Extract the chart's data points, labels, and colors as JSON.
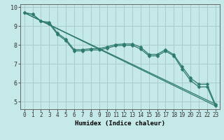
{
  "xlabel": "Humidex (Indice chaleur)",
  "background_color": "#c5e8e8",
  "line_color": "#2e7b6e",
  "grid_color": "#a8cccc",
  "xlim": [
    -0.5,
    23.5
  ],
  "ylim": [
    4.6,
    10.15
  ],
  "yticks": [
    5,
    6,
    7,
    8,
    9,
    10
  ],
  "xticks": [
    0,
    1,
    2,
    3,
    4,
    5,
    6,
    7,
    8,
    9,
    10,
    11,
    12,
    13,
    14,
    15,
    16,
    17,
    18,
    19,
    20,
    21,
    22,
    23
  ],
  "straight_line1": {
    "x": [
      0,
      23
    ],
    "y": [
      9.7,
      4.87
    ]
  },
  "straight_line2": {
    "x": [
      0,
      23
    ],
    "y": [
      9.7,
      4.78
    ]
  },
  "curve1_x": [
    0,
    1,
    2,
    3,
    4,
    5,
    6,
    7,
    8,
    9,
    10,
    11,
    12,
    13,
    14,
    15,
    16,
    17,
    18,
    19,
    20,
    21,
    22,
    23
  ],
  "curve1_y": [
    9.7,
    9.62,
    9.25,
    9.2,
    8.62,
    8.3,
    7.75,
    7.75,
    7.8,
    7.8,
    7.9,
    8.02,
    8.05,
    8.05,
    7.88,
    7.5,
    7.5,
    7.75,
    7.48,
    6.85,
    6.25,
    5.92,
    5.92,
    4.85
  ],
  "curve2_x": [
    0,
    1,
    2,
    3,
    4,
    5,
    6,
    7,
    8,
    9,
    10,
    11,
    12,
    13,
    14,
    15,
    16,
    17,
    18,
    19,
    20,
    21,
    22,
    23
  ],
  "curve2_y": [
    9.7,
    9.62,
    9.25,
    9.12,
    8.55,
    8.22,
    7.68,
    7.68,
    7.73,
    7.73,
    7.83,
    7.95,
    7.98,
    7.98,
    7.78,
    7.42,
    7.42,
    7.67,
    7.42,
    6.72,
    6.12,
    5.78,
    5.78,
    4.78
  ],
  "marker_size": 2.5,
  "linewidth": 0.9,
  "xlabel_fontsize": 6.5,
  "tick_fontsize": 5.5,
  "spine_color": "#666666"
}
